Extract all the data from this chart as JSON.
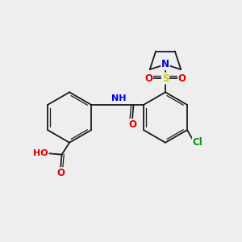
{
  "bg_color": "#eeeeee",
  "bond_color": "#1a1a1a",
  "text_colors": {
    "N": "#0000dd",
    "O": "#dd0000",
    "S": "#cccc00",
    "Cl": "#009900",
    "H": "#777777"
  },
  "font_size": 8.5
}
